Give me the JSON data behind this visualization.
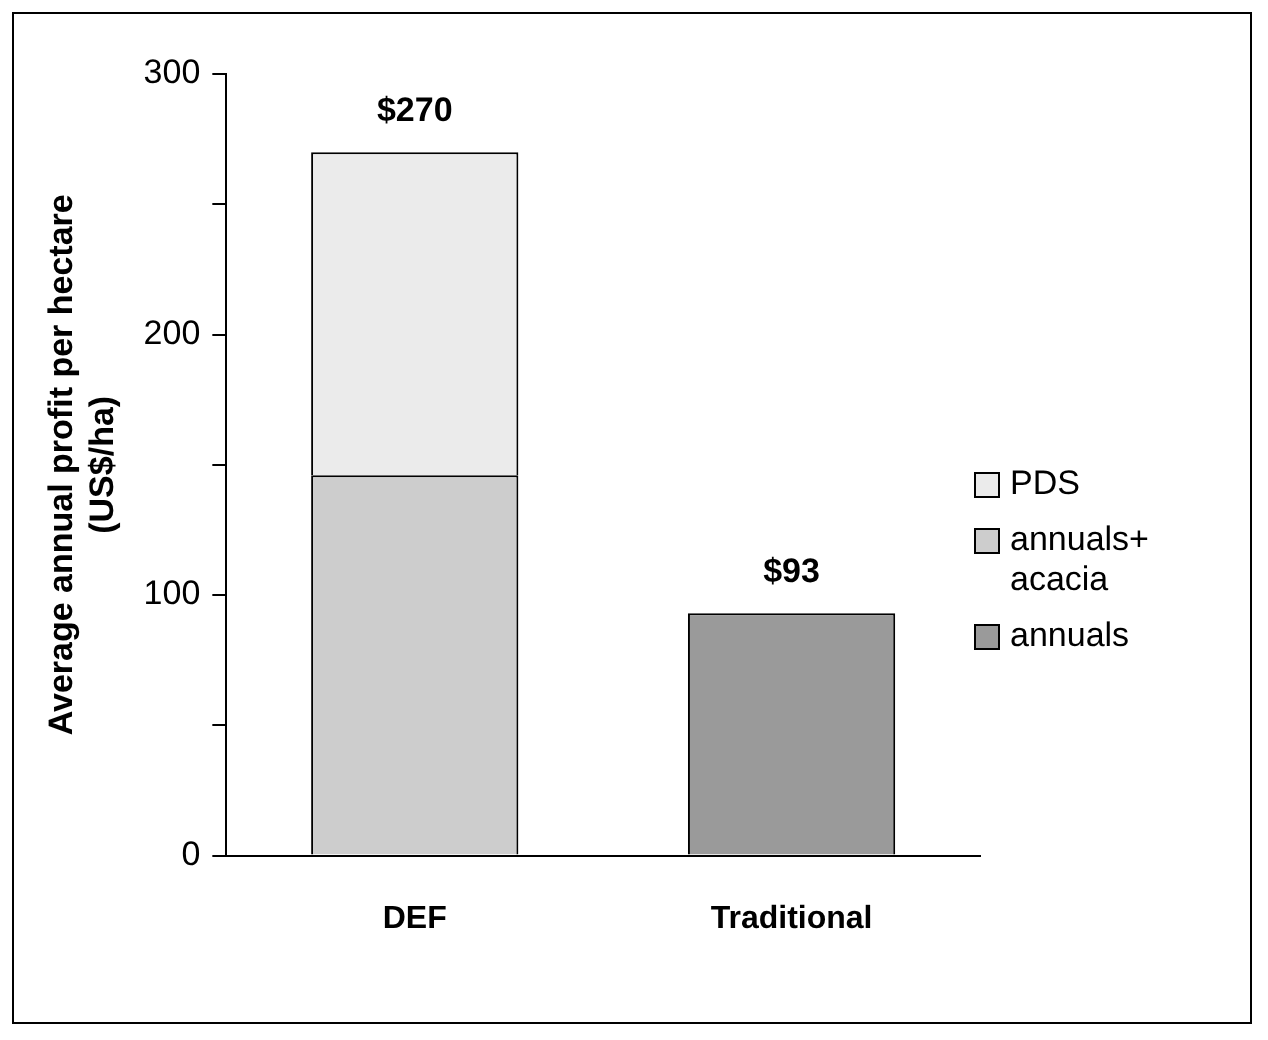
{
  "chart_data": {
    "type": "bar",
    "stacked": true,
    "ylabel": "Average annual profit per hectare\n(US$/ha)",
    "categories": [
      "DEF",
      "Traditional"
    ],
    "series": [
      {
        "name": "annuals",
        "color": "#9a9a9a",
        "values": [
          null,
          93
        ]
      },
      {
        "name": "annuals+ acacia",
        "color": "#cdcdcd",
        "values": [
          146,
          null
        ]
      },
      {
        "name": "PDS",
        "color": "#ebebeb",
        "values": [
          124,
          null
        ]
      }
    ],
    "totals": [
      "$270",
      "$93"
    ],
    "ylim": [
      0,
      300
    ],
    "yticks": [
      0,
      {
        "value": 50,
        "label": null
      },
      100,
      {
        "value": 150,
        "label": null
      },
      200,
      {
        "value": 250,
        "label": null
      },
      300
    ],
    "grid": false,
    "legend": "right"
  }
}
